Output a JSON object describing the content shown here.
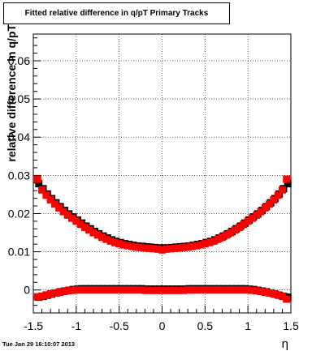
{
  "title": "Fitted relative difference in q/pT  Primary Tracks",
  "timestamp": "Tue Jan 29 16:10:07 2013",
  "chart_data": {
    "type": "scatter",
    "xlabel": "η",
    "ylabel": "relative difference in q/pT",
    "xlim": [
      -1.5,
      1.5
    ],
    "ylim": [
      -0.006,
      0.067
    ],
    "xticks": [
      -1.5,
      -1,
      -0.5,
      0,
      0.5,
      1,
      1.5
    ],
    "xtick_labels": [
      "-1.5",
      "-1",
      "-0.5",
      "0",
      "0.5",
      "1",
      "1.5"
    ],
    "yticks": [
      0,
      0.01,
      0.02,
      0.03,
      0.04,
      0.05,
      0.06
    ],
    "ytick_labels": [
      "0",
      "0.01",
      "0.02",
      "0.03",
      "0.04",
      "0.05",
      "0.06"
    ],
    "grid": true,
    "series": [
      {
        "color": "#000000",
        "marker": "square",
        "x": [
          -1.45,
          -1.4,
          -1.35,
          -1.3,
          -1.25,
          -1.2,
          -1.15,
          -1.1,
          -1.05,
          -1.0,
          -0.95,
          -0.9,
          -0.85,
          -0.8,
          -0.75,
          -0.7,
          -0.65,
          -0.6,
          -0.55,
          -0.5,
          -0.45,
          -0.4,
          -0.35,
          -0.3,
          -0.25,
          -0.2,
          -0.15,
          -0.1,
          -0.05,
          0.0,
          0.05,
          0.1,
          0.15,
          0.2,
          0.25,
          0.3,
          0.35,
          0.4,
          0.45,
          0.5,
          0.55,
          0.6,
          0.65,
          0.7,
          0.75,
          0.8,
          0.85,
          0.9,
          0.95,
          1.0,
          1.05,
          1.1,
          1.15,
          1.2,
          1.25,
          1.3,
          1.35,
          1.4,
          1.45
        ],
        "y": [
          0.0275,
          0.0262,
          0.0248,
          0.0236,
          0.0225,
          0.0215,
          0.0205,
          0.0196,
          0.0188,
          0.018,
          0.0172,
          0.0164,
          0.0157,
          0.015,
          0.0144,
          0.0138,
          0.0133,
          0.0128,
          0.0124,
          0.0121,
          0.0118,
          0.0116,
          0.0114,
          0.0112,
          0.0111,
          0.011,
          0.0109,
          0.0108,
          0.0107,
          0.0107,
          0.0107,
          0.0108,
          0.0109,
          0.011,
          0.0111,
          0.0112,
          0.0114,
          0.0116,
          0.0118,
          0.0121,
          0.0124,
          0.0128,
          0.0133,
          0.0138,
          0.0144,
          0.015,
          0.0157,
          0.0164,
          0.0172,
          0.018,
          0.0188,
          0.0196,
          0.0205,
          0.0215,
          0.0225,
          0.0236,
          0.0248,
          0.0262,
          0.0275
        ]
      },
      {
        "color": "#ff0000",
        "marker": "square",
        "x": [
          -1.45,
          -1.4,
          -1.35,
          -1.3,
          -1.25,
          -1.2,
          -1.15,
          -1.1,
          -1.05,
          -1.0,
          -0.95,
          -0.9,
          -0.85,
          -0.8,
          -0.75,
          -0.7,
          -0.65,
          -0.6,
          -0.55,
          -0.5,
          -0.45,
          -0.4,
          -0.35,
          -0.3,
          -0.25,
          -0.2,
          -0.15,
          -0.1,
          -0.05,
          0.0,
          0.05,
          0.1,
          0.15,
          0.2,
          0.25,
          0.3,
          0.35,
          0.4,
          0.45,
          0.5,
          0.55,
          0.6,
          0.65,
          0.7,
          0.75,
          0.8,
          0.85,
          0.9,
          0.95,
          1.0,
          1.05,
          1.1,
          1.15,
          1.2,
          1.25,
          1.3,
          1.35,
          1.4,
          1.45
        ],
        "y": [
          0.029,
          0.0262,
          0.0248,
          0.0236,
          0.0225,
          0.0215,
          0.0205,
          0.0196,
          0.0188,
          0.018,
          0.0172,
          0.0164,
          0.0157,
          0.015,
          0.0144,
          0.0138,
          0.0133,
          0.0128,
          0.0124,
          0.0121,
          0.0118,
          0.0116,
          0.0114,
          0.0112,
          0.0111,
          0.011,
          0.0109,
          0.0108,
          0.0107,
          0.0105,
          0.0107,
          0.0108,
          0.0109,
          0.011,
          0.0111,
          0.0112,
          0.0114,
          0.0116,
          0.0118,
          0.0121,
          0.0124,
          0.0128,
          0.0133,
          0.0138,
          0.0144,
          0.015,
          0.0157,
          0.0164,
          0.0172,
          0.018,
          0.0188,
          0.0196,
          0.0205,
          0.0215,
          0.0225,
          0.0236,
          0.0248,
          0.0262,
          0.029
        ]
      },
      {
        "color": "#000000",
        "marker": "square",
        "x": [
          -1.45,
          -1.4,
          -1.35,
          -1.3,
          -1.25,
          -1.2,
          -1.15,
          -1.1,
          -1.05,
          -1.0,
          -0.95,
          -0.9,
          -0.85,
          -0.8,
          -0.75,
          -0.7,
          -0.65,
          -0.6,
          -0.55,
          -0.5,
          -0.45,
          -0.4,
          -0.35,
          -0.3,
          -0.25,
          -0.2,
          -0.15,
          -0.1,
          -0.05,
          0.0,
          0.05,
          0.1,
          0.15,
          0.2,
          0.25,
          0.3,
          0.35,
          0.4,
          0.45,
          0.5,
          0.55,
          0.6,
          0.65,
          0.7,
          0.75,
          0.8,
          0.85,
          0.9,
          0.95,
          1.0,
          1.05,
          1.1,
          1.15,
          1.2,
          1.25,
          1.3,
          1.35,
          1.4,
          1.45
        ],
        "y": [
          -0.0022,
          -0.002,
          -0.0017,
          -0.0014,
          -0.0011,
          -0.0008,
          -0.0006,
          -0.0004,
          -0.0002,
          -0.0001,
          0.0,
          0.0,
          0.0,
          0.0,
          0.0,
          0.0,
          0.0,
          0.0,
          0.0,
          0.0,
          0.0,
          0.0,
          0.0,
          0.0,
          0.0,
          -0.0001,
          -0.0001,
          -0.0001,
          -0.0001,
          -0.0001,
          -0.0001,
          -0.0001,
          -0.0001,
          -0.0001,
          -0.0001,
          0.0,
          0.0,
          0.0,
          0.0,
          0.0,
          0.0,
          0.0,
          0.0,
          0.0,
          0.0,
          0.0,
          0.0,
          0.0,
          0.0,
          -0.0001,
          -0.0002,
          -0.0004,
          -0.0006,
          -0.0008,
          -0.0011,
          -0.0014,
          -0.0017,
          -0.002,
          -0.0022
        ]
      },
      {
        "color": "#ff0000",
        "marker": "square",
        "x": [
          -1.45,
          -1.4,
          -1.35,
          -1.3,
          -1.25,
          -1.2,
          -1.15,
          -1.1,
          -1.05,
          -1.0,
          -0.95,
          -0.9,
          -0.85,
          -0.8,
          -0.75,
          -0.7,
          -0.65,
          -0.6,
          -0.55,
          -0.5,
          -0.45,
          -0.4,
          -0.35,
          -0.3,
          -0.25,
          -0.2,
          -0.15,
          -0.1,
          -0.05,
          0.0,
          0.05,
          0.1,
          0.15,
          0.2,
          0.25,
          0.3,
          0.35,
          0.4,
          0.45,
          0.5,
          0.55,
          0.6,
          0.65,
          0.7,
          0.75,
          0.8,
          0.85,
          0.9,
          0.95,
          1.0,
          1.05,
          1.1,
          1.15,
          1.2,
          1.25,
          1.3,
          1.35,
          1.4,
          1.45
        ],
        "y": [
          -0.0018,
          -0.0016,
          -0.0013,
          -0.001,
          -0.0008,
          -0.0006,
          -0.0004,
          -0.0002,
          -0.0001,
          0.0,
          0.0,
          0.0,
          0.0,
          0.0,
          0.0,
          0.0,
          0.0,
          0.0,
          0.0,
          0.0,
          0.0,
          0.0,
          0.0,
          0.0,
          0.0,
          -0.0001,
          -0.0001,
          -0.0001,
          -0.0001,
          -0.0001,
          -0.0001,
          -0.0001,
          -0.0001,
          -0.0001,
          -0.0001,
          0.0,
          0.0,
          0.0,
          0.0,
          0.0,
          0.0,
          0.0,
          0.0,
          0.0,
          0.0,
          0.0,
          0.0,
          0.0,
          0.0,
          0.0,
          -0.0001,
          -0.0002,
          -0.0004,
          -0.0006,
          -0.0008,
          -0.001,
          -0.0013,
          -0.0016,
          -0.0024
        ]
      }
    ]
  }
}
